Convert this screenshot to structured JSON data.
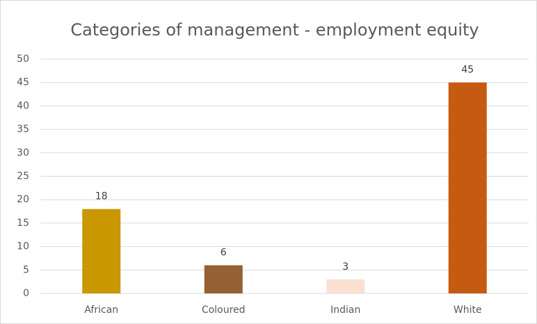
{
  "chart_data": {
    "type": "bar",
    "title": "Categories of management - employment equity",
    "categories": [
      "African",
      "Coloured",
      "Indian",
      "White"
    ],
    "values": [
      18,
      6,
      3,
      45
    ],
    "colors": [
      "#c99700",
      "#956132",
      "#fbe0d2",
      "#c55a11"
    ],
    "ylim": [
      0,
      50
    ],
    "yticks": [
      0,
      5,
      10,
      15,
      20,
      25,
      30,
      35,
      40,
      45,
      50
    ],
    "grid": true
  }
}
